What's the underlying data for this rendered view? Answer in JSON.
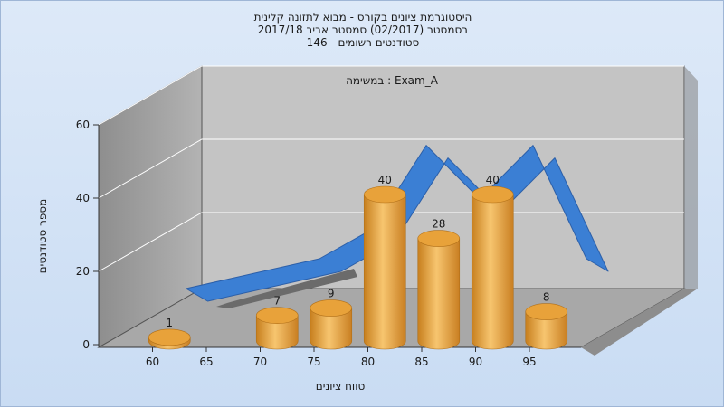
{
  "chart_data": {
    "type": "bar",
    "title_lines": [
      "היסטוגרמת ציונים בקורס - מבוא לתזונה קלינית",
      "בסמסטר  (02/2017)  סמסטר אביב 2017/18",
      "146 - סטודנטים רשומים"
    ],
    "annotation": "במשימה : Exam_A",
    "xlabel": "טווח ציונים",
    "ylabel": "מספר סטודנטים",
    "ylim": [
      0,
      60
    ],
    "yticks": [
      "0",
      "20",
      "40",
      "60"
    ],
    "xticks": [
      "60",
      "65",
      "70",
      "75",
      "80",
      "85",
      "90",
      "95"
    ],
    "bars": [
      {
        "x": 60,
        "value": 1,
        "label": "1"
      },
      {
        "x": 70,
        "value": 7,
        "label": "7"
      },
      {
        "x": 75,
        "value": 9,
        "label": "9"
      },
      {
        "x": 80,
        "value": 40,
        "label": "40"
      },
      {
        "x": 85,
        "value": 28,
        "label": "28"
      },
      {
        "x": 90,
        "value": 40,
        "label": "40"
      },
      {
        "x": 95,
        "value": 8,
        "label": "8"
      }
    ],
    "curve": {
      "x": [
        62.5,
        75,
        80,
        85,
        90,
        95,
        100
      ],
      "y": [
        0,
        10,
        20,
        48,
        30,
        48,
        10
      ]
    },
    "grid": true,
    "colors": {
      "bar": "#e8a23a",
      "curve": "#3b7fd4",
      "curve_dark": "#2c5fa8",
      "wall": "#bfbfbf",
      "floor": "#a0a0a0"
    }
  }
}
